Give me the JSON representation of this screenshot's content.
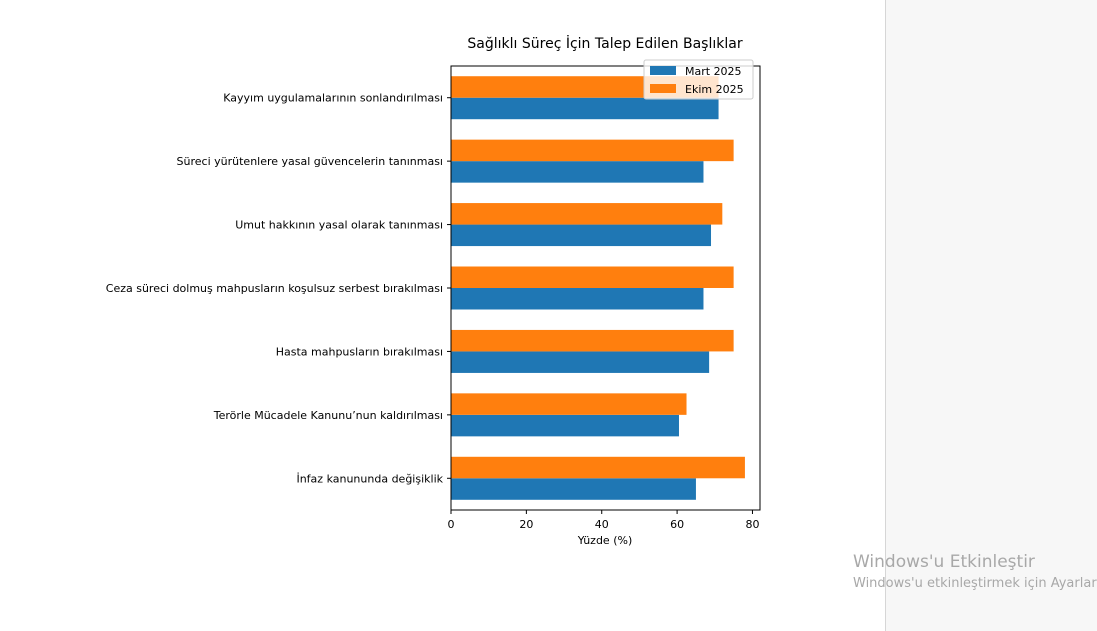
{
  "watermark": {
    "title": "Windows'u Etkinleştir",
    "subtitle": "Windows'u etkinleştirmek için Ayarlar"
  },
  "chart_data": {
    "type": "bar",
    "orientation": "horizontal",
    "title": "Sağlıklı Süreç İçin Talep Edilen Başlıklar",
    "xlabel": "Yüzde (%)",
    "ylabel": "",
    "xlim": [
      0,
      82
    ],
    "xticks": [
      0,
      20,
      40,
      60,
      80
    ],
    "grid": false,
    "legend_position": "top-right",
    "categories": [
      "Kayyım uygulamalarının sonlandırılması",
      "Süreci yürütenlere yasal güvencelerin tanınması",
      "Umut hakkının yasal olarak tanınması",
      "Ceza süreci dolmuş mahpusların koşulsuz serbest bırakılması",
      "Hasta mahpusların bırakılması",
      "Terörle Mücadele Kanunu’nun kaldırılması",
      "İnfaz kanununda değişiklik"
    ],
    "series": [
      {
        "name": "Mart 2025",
        "color": "#1f77b4",
        "values": [
          71,
          67,
          69,
          67,
          68.5,
          60.5,
          65
        ]
      },
      {
        "name": "Ekim 2025",
        "color": "#ff7f0e",
        "values": [
          71,
          75,
          72,
          75,
          75,
          62.5,
          78
        ]
      }
    ]
  }
}
